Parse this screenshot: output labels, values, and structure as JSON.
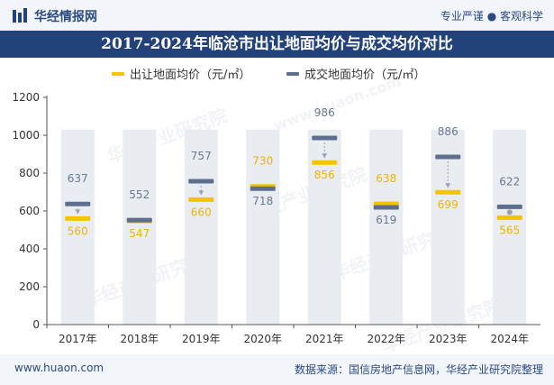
{
  "header": {
    "brand": "华经情报网",
    "slogan": "专业严谨 ● 客观科学"
  },
  "legend": {
    "supply": "出让地面均价（元/㎡）",
    "deal": "成交地面均价（元/㎡）"
  },
  "footer": {
    "site": "www.huaon.com",
    "source": "数据来源：国信房地产信息网，华经产业研究院整理"
  },
  "watermarks": [
    "华经产业研究院",
    "www.huaon.com",
    "华经产业研究院",
    "华经产业研究院",
    "华经产业研究院",
    "华经产业研究院"
  ],
  "colors": {
    "supply": "#f5c400",
    "deal": "#5e6e8e",
    "column": "#e9ecf1",
    "label_supply": "#f0b400",
    "label_deal": "#6b7890"
  },
  "chart_data": {
    "type": "line",
    "title": "2017-2024年临沧市出让地面均价与成交均价对比",
    "categories": [
      "2017年",
      "2018年",
      "2019年",
      "2020年",
      "2021年",
      "2022年",
      "2023年",
      "2024年"
    ],
    "series": [
      {
        "name": "出让地面均价（元/㎡）",
        "values": [
          560,
          547,
          660,
          730,
          856,
          638,
          699,
          565
        ]
      },
      {
        "name": "成交地面均价（元/㎡）",
        "values": [
          637,
          552,
          757,
          718,
          986,
          619,
          886,
          622
        ]
      }
    ],
    "ylim": [
      0,
      1200
    ],
    "yticks": [
      0,
      200,
      400,
      600,
      800,
      1000,
      1200
    ],
    "xlabel": "",
    "ylabel": "",
    "column_top": 1030
  }
}
